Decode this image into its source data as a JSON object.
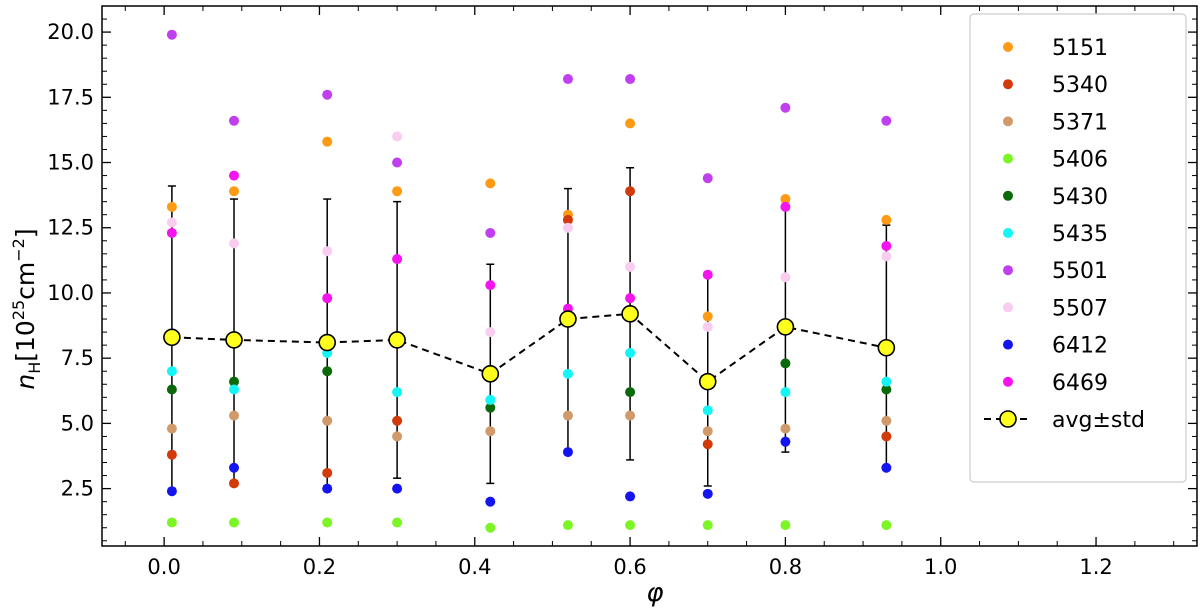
{
  "chart_data": {
    "type": "scatter",
    "xlabel": "φ",
    "ylabel_main": "n",
    "ylabel_sub": "H",
    "ylabel_unit_pre": "[10",
    "ylabel_unit_exp1": "25",
    "ylabel_unit_mid": "cm",
    "ylabel_unit_exp2": "−2",
    "ylabel_unit_post": "]",
    "xlim": [
      -0.08,
      1.33
    ],
    "ylim": [
      0.3,
      21.0
    ],
    "x_ticks": [
      "0.0",
      "0.2",
      "0.4",
      "0.6",
      "0.8",
      "1.0",
      "1.2"
    ],
    "x_tick_values": [
      0.0,
      0.2,
      0.4,
      0.6,
      0.8,
      1.0,
      1.2
    ],
    "y_ticks": [
      "2.5",
      "5.0",
      "7.5",
      "10.0",
      "12.5",
      "15.0",
      "17.5",
      "20.0"
    ],
    "y_tick_values": [
      2.5,
      5.0,
      7.5,
      10.0,
      12.5,
      15.0,
      17.5,
      20.0
    ],
    "grid": false,
    "legend_position": "right",
    "x": [
      0.01,
      0.09,
      0.21,
      0.3,
      0.42,
      0.52,
      0.6,
      0.7,
      0.8,
      0.93
    ],
    "series": [
      {
        "name": "5151",
        "color": "#ff9a14",
        "values": [
          13.3,
          13.9,
          15.8,
          13.9,
          14.2,
          13.0,
          16.5,
          9.1,
          13.6,
          12.8
        ]
      },
      {
        "name": "5340",
        "color": "#d23a0a",
        "values": [
          3.8,
          2.7,
          3.1,
          5.1,
          null,
          12.8,
          13.9,
          4.2,
          null,
          4.5
        ]
      },
      {
        "name": "5371",
        "color": "#d09a6a",
        "values": [
          4.8,
          5.3,
          5.1,
          4.5,
          4.7,
          5.3,
          5.3,
          4.7,
          4.8,
          5.1
        ]
      },
      {
        "name": "5406",
        "color": "#7cf524",
        "values": [
          1.2,
          1.2,
          1.2,
          1.2,
          1.0,
          1.1,
          1.1,
          1.1,
          1.1,
          1.1
        ]
      },
      {
        "name": "5430",
        "color": "#0a6a0a",
        "values": [
          6.3,
          6.6,
          7.0,
          null,
          5.6,
          null,
          6.2,
          null,
          7.3,
          6.3
        ]
      },
      {
        "name": "5435",
        "color": "#14f5f5",
        "values": [
          7.0,
          6.3,
          7.7,
          6.2,
          5.9,
          6.9,
          7.7,
          5.5,
          6.2,
          6.6
        ]
      },
      {
        "name": "5501",
        "color": "#c040f0",
        "values": [
          19.9,
          16.6,
          17.6,
          15.0,
          12.3,
          18.2,
          18.2,
          14.4,
          17.1,
          16.6
        ]
      },
      {
        "name": "5507",
        "color": "#f8cdf0",
        "values": [
          12.7,
          11.9,
          11.6,
          16.0,
          8.5,
          12.5,
          11.0,
          8.7,
          10.6,
          11.4
        ]
      },
      {
        "name": "6412",
        "color": "#1414f0",
        "values": [
          2.4,
          3.3,
          2.5,
          2.5,
          2.0,
          3.9,
          2.2,
          2.3,
          4.3,
          3.3
        ]
      },
      {
        "name": "6469",
        "color": "#f514f0",
        "values": [
          12.3,
          14.5,
          9.8,
          11.3,
          10.3,
          9.4,
          9.8,
          10.7,
          13.3,
          11.8
        ]
      }
    ],
    "average": {
      "name": "avg±std",
      "marker_fill": "#ffff1e",
      "values": [
        8.3,
        8.2,
        8.1,
        8.2,
        6.9,
        9.0,
        9.2,
        6.6,
        8.7,
        7.9
      ],
      "std": [
        5.8,
        5.4,
        5.5,
        5.3,
        4.2,
        5.0,
        5.6,
        4.0,
        4.8,
        4.7
      ]
    }
  }
}
